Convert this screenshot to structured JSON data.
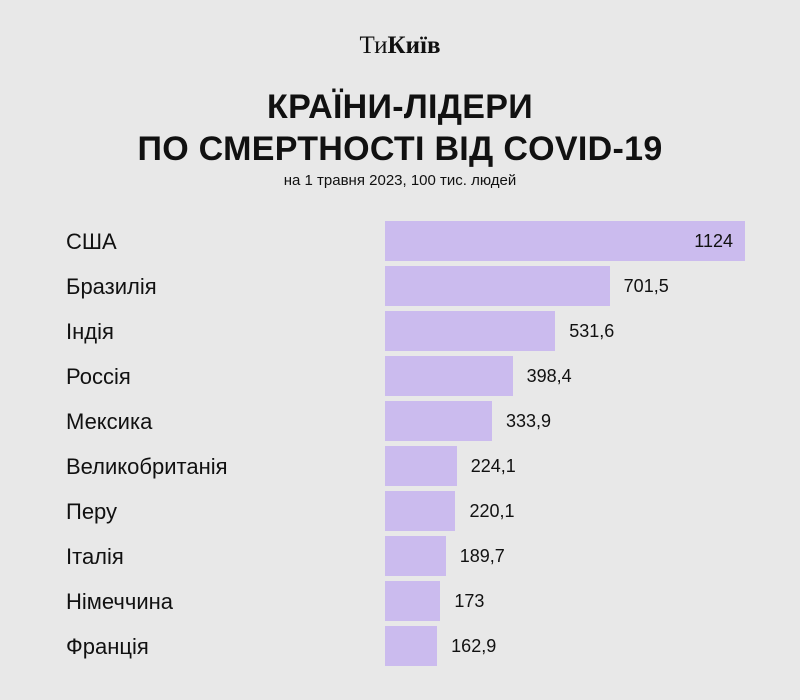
{
  "brand": {
    "part1": "Ти",
    "part2": "Київ"
  },
  "header": {
    "title_line1": "КРАЇНИ-ЛІДЕРИ",
    "title_line2": "ПО СМЕРТНОСТІ ВІД COVID-19",
    "subtitle": "на 1 травня 2023, 100 тис. людей"
  },
  "colors": {
    "bar": "#cbbbee",
    "background": "#e8e8e8",
    "text": "#111111"
  },
  "chart_data": {
    "type": "bar",
    "orientation": "horizontal",
    "title": "КРАЇНИ-ЛІДЕРИ ПО СМЕРТНОСТІ ВІД COVID-19",
    "subtitle": "на 1 травня 2023, 100 тис. людей",
    "xlabel": "",
    "ylabel": "",
    "grid": false,
    "categories": [
      "США",
      "Бразилія",
      "Індія",
      "Россія",
      "Мексика",
      "Великобританія",
      "Перу",
      "Італія",
      "Німеччина",
      "Франція"
    ],
    "values": [
      1124,
      701.5,
      531.6,
      398.4,
      333.9,
      224.1,
      220.1,
      189.7,
      173,
      162.9
    ],
    "value_labels": [
      "1124",
      "701,5",
      "531,6",
      "398,4",
      "333,9",
      "224,1",
      "220,1",
      "189,7",
      "173",
      "162,9"
    ]
  }
}
